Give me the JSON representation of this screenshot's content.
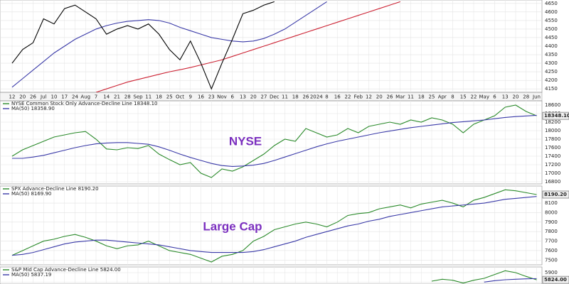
{
  "chart_data": [
    {
      "type": "line",
      "categories": [
        "12",
        "20",
        "26",
        "Jul",
        "10",
        "17",
        "24",
        "Aug",
        "7",
        "14",
        "21",
        "28",
        "Sep",
        "11",
        "18",
        "25",
        "Oct",
        "9",
        "16",
        "23",
        "Nov",
        "6",
        "13",
        "20",
        "27",
        "Dec",
        "11",
        "18",
        "26",
        "2024",
        "8",
        "16",
        "22",
        "Feb",
        "12",
        "20",
        "26",
        "Mar",
        "11",
        "18",
        "25",
        "Apr",
        "8",
        "15",
        "22",
        "May",
        "6",
        "13",
        "20",
        "28",
        "Jun"
      ],
      "ylim": [
        4130,
        4670
      ],
      "yticks": [
        4150,
        4200,
        4250,
        4300,
        4350,
        4400,
        4450,
        4500,
        4550,
        4600,
        4650
      ],
      "grid": true,
      "series": [
        {
          "color": "#cc2233",
          "values": [
            null,
            null,
            null,
            null,
            null,
            null,
            null,
            null,
            4130,
            4150,
            4170,
            4190,
            4205,
            4220,
            4235,
            4250,
            4262,
            4275,
            4290,
            4305,
            4320,
            4340,
            4360,
            4380,
            4400,
            4420,
            4440,
            4460,
            4480,
            4500,
            4520,
            4540,
            4560,
            4580,
            4600,
            4620,
            4640,
            4660,
            null,
            null,
            null,
            null,
            null,
            null,
            null,
            null,
            null,
            null,
            null,
            null,
            null
          ]
        },
        {
          "color": "#3a3aa8",
          "values": [
            4160,
            4210,
            4260,
            4310,
            4360,
            4400,
            4440,
            4470,
            4500,
            4520,
            4535,
            4545,
            4550,
            4555,
            4550,
            4535,
            4510,
            4490,
            4470,
            4450,
            4440,
            4430,
            4425,
            4430,
            4445,
            4470,
            4500,
            4540,
            4580,
            4620,
            4660,
            null,
            null,
            null,
            null,
            null,
            null,
            null,
            null,
            null,
            null,
            null,
            null,
            null,
            null,
            null,
            null,
            null,
            null,
            null,
            null
          ]
        },
        {
          "color": "#000000",
          "values": [
            4300,
            4380,
            4420,
            4560,
            4530,
            4620,
            4640,
            4600,
            4560,
            4470,
            4500,
            4520,
            4500,
            4530,
            4470,
            4380,
            4320,
            4430,
            4300,
            4150,
            4300,
            4440,
            4590,
            4610,
            4640,
            4660,
            null,
            null,
            null,
            null,
            null,
            null,
            null,
            null,
            null,
            null,
            null,
            null,
            null,
            null,
            null,
            null,
            null,
            null,
            null,
            null,
            null,
            null,
            null,
            null,
            null
          ]
        }
      ]
    },
    {
      "type": "line",
      "ylim": [
        16750,
        18700
      ],
      "yticks": [
        16800,
        17000,
        17200,
        17400,
        17600,
        17800,
        18000,
        18200,
        18400,
        18600
      ],
      "grid": true,
      "annotation": "NYSE",
      "series": [
        {
          "name": "NYSE Common Stock Only Advance-Decline Line",
          "color": "#2a8a2a",
          "values": [
            17400,
            17550,
            17650,
            17750,
            17850,
            17900,
            17950,
            17980,
            17800,
            17570,
            17550,
            17600,
            17580,
            17650,
            17450,
            17320,
            17200,
            17250,
            17000,
            16900,
            17100,
            17050,
            17150,
            17300,
            17450,
            17650,
            17800,
            17750,
            18050,
            17950,
            17850,
            17900,
            18050,
            17950,
            18100,
            18150,
            18200,
            18150,
            18250,
            18200,
            18300,
            18250,
            18150,
            17950,
            18150,
            18250,
            18350,
            18550,
            18600,
            18450,
            18348.1
          ],
          "value_labels": [
            null,
            null,
            null,
            null,
            null,
            null,
            null,
            null,
            null,
            null,
            null,
            null,
            null,
            null,
            null,
            null,
            null,
            null,
            null,
            null,
            null,
            null,
            null,
            null,
            null,
            null,
            null,
            null,
            null,
            null,
            null,
            null,
            null,
            null,
            null,
            null,
            null,
            null,
            null,
            null,
            null,
            null,
            null,
            null,
            null,
            null,
            null,
            null,
            null,
            null,
            "18348.10"
          ]
        },
        {
          "name": "MA(50)",
          "color": "#3a3aa8",
          "values": [
            17350,
            17350,
            17380,
            17420,
            17480,
            17540,
            17600,
            17650,
            17690,
            17710,
            17720,
            17720,
            17700,
            17680,
            17620,
            17540,
            17450,
            17370,
            17300,
            17230,
            17180,
            17160,
            17170,
            17190,
            17230,
            17300,
            17380,
            17460,
            17540,
            17620,
            17690,
            17750,
            17800,
            17850,
            17900,
            17950,
            17990,
            18030,
            18070,
            18100,
            18130,
            18160,
            18190,
            18210,
            18230,
            18250,
            18280,
            18310,
            18330,
            18345,
            18358.9
          ],
          "value_labels": [
            null,
            null,
            null,
            null,
            null,
            null,
            null,
            null,
            null,
            null,
            null,
            null,
            null,
            null,
            null,
            null,
            null,
            null,
            null,
            null,
            null,
            null,
            null,
            null,
            null,
            null,
            null,
            null,
            null,
            null,
            null,
            null,
            null,
            null,
            null,
            null,
            null,
            null,
            null,
            null,
            null,
            null,
            null,
            null,
            null,
            null,
            null,
            null,
            null,
            null,
            "18358.90"
          ]
        }
      ]
    },
    {
      "type": "line",
      "ylim": [
        7450,
        8280
      ],
      "yticks": [
        7500,
        7600,
        7700,
        7800,
        7900,
        8000,
        8100
      ],
      "grid": true,
      "annotation": "Large Cap",
      "series": [
        {
          "name": "SPX Advance-Decline Line",
          "color": "#2a8a2a",
          "values": [
            7550,
            7600,
            7650,
            7700,
            7720,
            7750,
            7770,
            7740,
            7700,
            7650,
            7620,
            7650,
            7660,
            7700,
            7650,
            7600,
            7580,
            7560,
            7520,
            7480,
            7540,
            7560,
            7600,
            7700,
            7750,
            7820,
            7850,
            7880,
            7900,
            7880,
            7850,
            7900,
            7970,
            7990,
            8000,
            8040,
            8060,
            8080,
            8050,
            8090,
            8110,
            8130,
            8100,
            8060,
            8130,
            8160,
            8200,
            8240,
            8230,
            8210,
            8190.2
          ],
          "value_labels": [
            null,
            null,
            null,
            null,
            null,
            null,
            null,
            null,
            null,
            null,
            null,
            null,
            null,
            null,
            null,
            null,
            null,
            null,
            null,
            null,
            null,
            null,
            null,
            null,
            null,
            null,
            null,
            null,
            null,
            null,
            null,
            null,
            null,
            null,
            null,
            null,
            null,
            null,
            null,
            null,
            null,
            null,
            null,
            null,
            null,
            null,
            null,
            null,
            null,
            null,
            "8190.20"
          ]
        },
        {
          "name": "MA(50)",
          "color": "#3a3aa8",
          "values": [
            7550,
            7560,
            7580,
            7610,
            7640,
            7670,
            7690,
            7700,
            7710,
            7710,
            7700,
            7690,
            7680,
            7670,
            7660,
            7640,
            7620,
            7600,
            7590,
            7580,
            7580,
            7580,
            7580,
            7590,
            7610,
            7640,
            7670,
            7700,
            7740,
            7770,
            7800,
            7830,
            7860,
            7880,
            7910,
            7930,
            7960,
            7980,
            8000,
            8020,
            8040,
            8060,
            8070,
            8080,
            8090,
            8100,
            8120,
            8140,
            8150,
            8160,
            8169.9
          ],
          "value_labels": [
            null,
            null,
            null,
            null,
            null,
            null,
            null,
            null,
            null,
            null,
            null,
            null,
            null,
            null,
            null,
            null,
            null,
            null,
            null,
            null,
            null,
            null,
            null,
            null,
            null,
            null,
            null,
            null,
            null,
            null,
            null,
            null,
            null,
            null,
            null,
            null,
            null,
            null,
            null,
            null,
            null,
            null,
            null,
            null,
            null,
            null,
            null,
            null,
            null,
            null,
            "8169.90"
          ]
        }
      ]
    },
    {
      "type": "line",
      "ylim": [
        5780,
        5960
      ],
      "yticks": [
        5800,
        5900
      ],
      "grid": true,
      "series": [
        {
          "name": "S&P Mid Cap Advance-Decline Line",
          "color": "#2a8a2a",
          "values": [
            null,
            null,
            null,
            null,
            null,
            null,
            null,
            null,
            null,
            null,
            null,
            null,
            null,
            null,
            null,
            null,
            null,
            null,
            null,
            null,
            null,
            null,
            null,
            null,
            null,
            null,
            null,
            null,
            null,
            null,
            null,
            null,
            null,
            null,
            null,
            null,
            null,
            null,
            null,
            null,
            5810,
            5830,
            5820,
            5790,
            5820,
            5840,
            5880,
            5920,
            5900,
            5860,
            5824
          ],
          "value_labels": [
            null,
            null,
            null,
            null,
            null,
            null,
            null,
            null,
            null,
            null,
            null,
            null,
            null,
            null,
            null,
            null,
            null,
            null,
            null,
            null,
            null,
            null,
            null,
            null,
            null,
            null,
            null,
            null,
            null,
            null,
            null,
            null,
            null,
            null,
            null,
            null,
            null,
            null,
            null,
            null,
            null,
            null,
            null,
            null,
            null,
            null,
            null,
            null,
            null,
            null,
            "5824.00"
          ]
        },
        {
          "name": "MA(50)",
          "color": "#3a3aa8",
          "values": [
            null,
            null,
            null,
            null,
            null,
            null,
            null,
            null,
            null,
            null,
            null,
            null,
            null,
            null,
            null,
            null,
            null,
            null,
            null,
            null,
            null,
            null,
            null,
            null,
            null,
            null,
            null,
            null,
            null,
            null,
            null,
            null,
            null,
            null,
            null,
            null,
            null,
            null,
            null,
            null,
            null,
            null,
            null,
            null,
            null,
            5800,
            5815,
            5825,
            5830,
            5835,
            5837.19
          ],
          "value_labels": [
            null,
            null,
            null,
            null,
            null,
            null,
            null,
            null,
            null,
            null,
            null,
            null,
            null,
            null,
            null,
            null,
            null,
            null,
            null,
            null,
            null,
            null,
            null,
            null,
            null,
            null,
            null,
            null,
            null,
            null,
            null,
            null,
            null,
            null,
            null,
            null,
            null,
            null,
            null,
            null,
            null,
            null,
            null,
            null,
            null,
            null,
            null,
            null,
            null,
            null,
            "5837.19"
          ]
        }
      ]
    }
  ]
}
